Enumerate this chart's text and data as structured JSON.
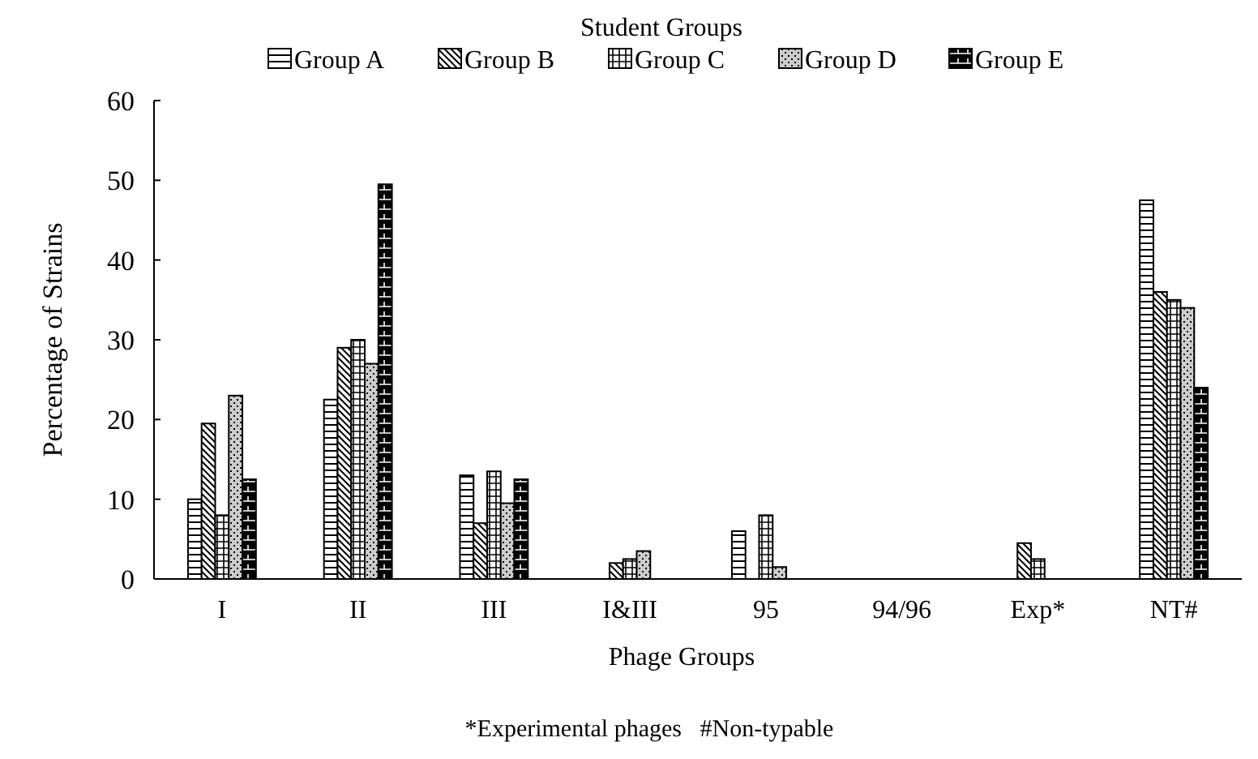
{
  "chart_data": {
    "type": "bar",
    "xlabel": "Phage Groups",
    "ylabel": "Percentage of Strains",
    "legend_title": "Student Groups",
    "legend": "top",
    "categories": [
      "I",
      "II",
      "III",
      "I&III",
      "95",
      "94/96",
      "Exp*",
      "NT#"
    ],
    "series": [
      {
        "name": "Group A",
        "color": "#000000",
        "values": [
          10,
          22.5,
          13,
          0,
          6,
          0,
          0,
          47.5
        ]
      },
      {
        "name": "Group B",
        "color": "#000000",
        "values": [
          19.5,
          29,
          7,
          2,
          0,
          0,
          4.5,
          36
        ]
      },
      {
        "name": "Group C",
        "color": "#000000",
        "values": [
          8,
          30,
          13.5,
          2.5,
          8,
          0,
          2.5,
          35
        ]
      },
      {
        "name": "Group D",
        "color": "#000000",
        "values": [
          23,
          27,
          9.5,
          3.5,
          1.5,
          0,
          0,
          34
        ]
      },
      {
        "name": "Group E",
        "color": "#000000",
        "values": [
          12.5,
          49.5,
          12.5,
          0,
          0,
          0,
          0,
          24
        ]
      }
    ],
    "ylim": [
      0,
      60
    ],
    "yticks": [
      0,
      10,
      20,
      30,
      40,
      50,
      60
    ],
    "grid": false,
    "annotations": [
      "*Experimental phages   #Non-typable"
    ]
  }
}
